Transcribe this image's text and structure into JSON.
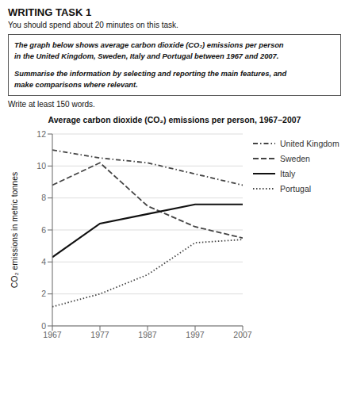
{
  "chart_data": {
    "type": "line",
    "title": "Average carbon dioxide (CO₂) emissions per person, 1967–2007",
    "y_label": "CO₂ emissions in metric tonnes",
    "annotations": [
      "WRITING TASK 1",
      "You should spend about 20 minutes on this task.",
      "The graph below shows average carbon dioxide (CO₂) emissions per person\nin the United Kingdom, Sweden, Italy and Portugal between 1967 and 2007.",
      "Summarise the information by selecting and reporting the main features, and\nmake comparisons where relevant.",
      "Write at least 150 words."
    ],
    "x": [
      1967,
      1977,
      1987,
      1997,
      2007
    ],
    "series": [
      {
        "name": "United Kingdom",
        "color": "#444444",
        "line_style": "dashdot",
        "values": [
          11.0,
          10.5,
          10.2,
          9.5,
          8.8
        ]
      },
      {
        "name": "Sweden",
        "color": "#444444",
        "line_style": "dashed",
        "values": [
          8.8,
          10.2,
          7.5,
          6.2,
          5.5
        ]
      },
      {
        "name": "Italy",
        "color": "#111111",
        "line_style": "solid",
        "values": [
          4.3,
          6.4,
          7.0,
          7.6,
          7.6
        ]
      },
      {
        "name": "Portugal",
        "color": "#444444",
        "line_style": "dotted",
        "values": [
          1.2,
          2.0,
          3.2,
          5.2,
          5.4
        ]
      }
    ],
    "xlim": [
      1967,
      2007
    ],
    "xticks": [
      1967,
      1977,
      1987,
      1997,
      2007
    ],
    "ylim": [
      0,
      12
    ],
    "yticks": [
      0,
      2,
      4,
      6,
      8,
      10,
      12
    ],
    "grid": true,
    "legend": "right"
  }
}
